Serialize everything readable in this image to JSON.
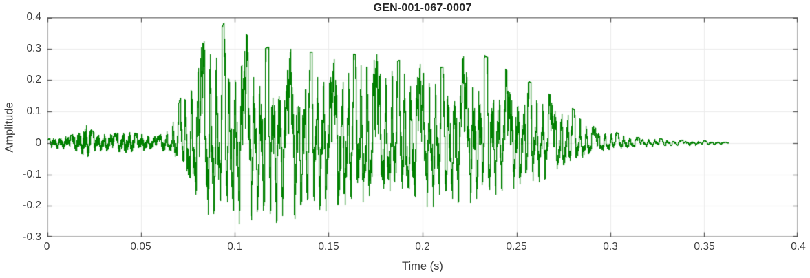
{
  "figure": {
    "title": "GEN-001-067-0007",
    "xlabel": "Time (s)",
    "ylabel": "Amplitude"
  },
  "colors": {
    "waveform": "#008000",
    "axis_box": "#909090",
    "tick_mark": "#4f4f4f",
    "grid": "#ebebeb",
    "text": "#3c3c3c",
    "title_text": "#262626",
    "background": "#ffffff"
  },
  "chart_data": {
    "type": "line",
    "title": "GEN-001-067-0007",
    "xlabel": "Time (s)",
    "ylabel": "Amplitude",
    "xlim": [
      0,
      0.4
    ],
    "ylim": [
      -0.3,
      0.4
    ],
    "grid": true,
    "legend_position": "none",
    "xtick_values": [
      0,
      0.05,
      0.1,
      0.15,
      0.2,
      0.25,
      0.3,
      0.35,
      0.4
    ],
    "xtick_labels": [
      "0",
      "0.05",
      "0.1",
      "0.15",
      "0.2",
      "0.25",
      "0.3",
      "0.35",
      "0.4"
    ],
    "ytick_values": [
      -0.3,
      -0.2,
      -0.1,
      0,
      0.1,
      0.2,
      0.3,
      0.4
    ],
    "ytick_labels": [
      "-0.3",
      "-0.2",
      "-0.1",
      "0",
      "0.1",
      "0.2",
      "0.3",
      "0.4"
    ],
    "line_color": "#008000",
    "signal": {
      "description": "speech-like waveform: low noise 0-0.065s, strong voiced burst 0.07-0.29s peaking 0.39 near t=0.095, decaying ring-out tail ending near t=0.363s",
      "start_s": 0,
      "end_s": 0.363,
      "noise_end_s": 0.063,
      "pitch_hz": 86,
      "formant_hz": 300,
      "peak_amplitude": 0.39,
      "min_amplitude": -0.27,
      "envelope": {
        "t": [
          0.0,
          0.008,
          0.015,
          0.019,
          0.021,
          0.024,
          0.03,
          0.036,
          0.042,
          0.048,
          0.054,
          0.059,
          0.063,
          0.066,
          0.069,
          0.072,
          0.076,
          0.08,
          0.085,
          0.09,
          0.095,
          0.1,
          0.104,
          0.108,
          0.112,
          0.116,
          0.12,
          0.125,
          0.13,
          0.135,
          0.14,
          0.145,
          0.15,
          0.155,
          0.16,
          0.165,
          0.17,
          0.175,
          0.18,
          0.185,
          0.19,
          0.195,
          0.2,
          0.205,
          0.21,
          0.215,
          0.22,
          0.225,
          0.23,
          0.235,
          0.24,
          0.245,
          0.25,
          0.255,
          0.26,
          0.265,
          0.27,
          0.275,
          0.28,
          0.285,
          0.29,
          0.295,
          0.3,
          0.305,
          0.31,
          0.315,
          0.32,
          0.33,
          0.34,
          0.35,
          0.358,
          0.363
        ],
        "upper": [
          0.012,
          0.02,
          0.028,
          0.05,
          0.068,
          0.038,
          0.026,
          0.03,
          0.034,
          0.03,
          0.024,
          0.02,
          0.035,
          0.06,
          0.1,
          0.16,
          0.24,
          0.3,
          0.33,
          0.33,
          0.39,
          0.34,
          0.365,
          0.33,
          0.29,
          0.3,
          0.31,
          0.28,
          0.3,
          0.27,
          0.29,
          0.285,
          0.26,
          0.27,
          0.29,
          0.28,
          0.32,
          0.3,
          0.26,
          0.255,
          0.27,
          0.25,
          0.26,
          0.25,
          0.24,
          0.25,
          0.27,
          0.28,
          0.29,
          0.27,
          0.255,
          0.23,
          0.22,
          0.2,
          0.185,
          0.16,
          0.15,
          0.13,
          0.11,
          0.08,
          0.055,
          0.042,
          0.038,
          0.03,
          0.022,
          0.018,
          0.016,
          0.012,
          0.009,
          0.007,
          0.005,
          0.002
        ],
        "lower": [
          -0.012,
          -0.018,
          -0.022,
          -0.035,
          -0.048,
          -0.03,
          -0.024,
          -0.026,
          -0.03,
          -0.026,
          -0.02,
          -0.018,
          -0.028,
          -0.04,
          -0.065,
          -0.11,
          -0.17,
          -0.23,
          -0.26,
          -0.265,
          -0.25,
          -0.27,
          -0.25,
          -0.24,
          -0.255,
          -0.265,
          -0.27,
          -0.23,
          -0.25,
          -0.23,
          -0.235,
          -0.22,
          -0.215,
          -0.24,
          -0.245,
          -0.21,
          -0.23,
          -0.215,
          -0.2,
          -0.21,
          -0.21,
          -0.215,
          -0.22,
          -0.21,
          -0.22,
          -0.2,
          -0.195,
          -0.19,
          -0.18,
          -0.175,
          -0.16,
          -0.15,
          -0.15,
          -0.14,
          -0.13,
          -0.12,
          -0.11,
          -0.1,
          -0.085,
          -0.06,
          -0.045,
          -0.035,
          -0.028,
          -0.022,
          -0.018,
          -0.014,
          -0.012,
          -0.01,
          -0.008,
          -0.006,
          -0.005,
          -0.003
        ]
      }
    }
  }
}
